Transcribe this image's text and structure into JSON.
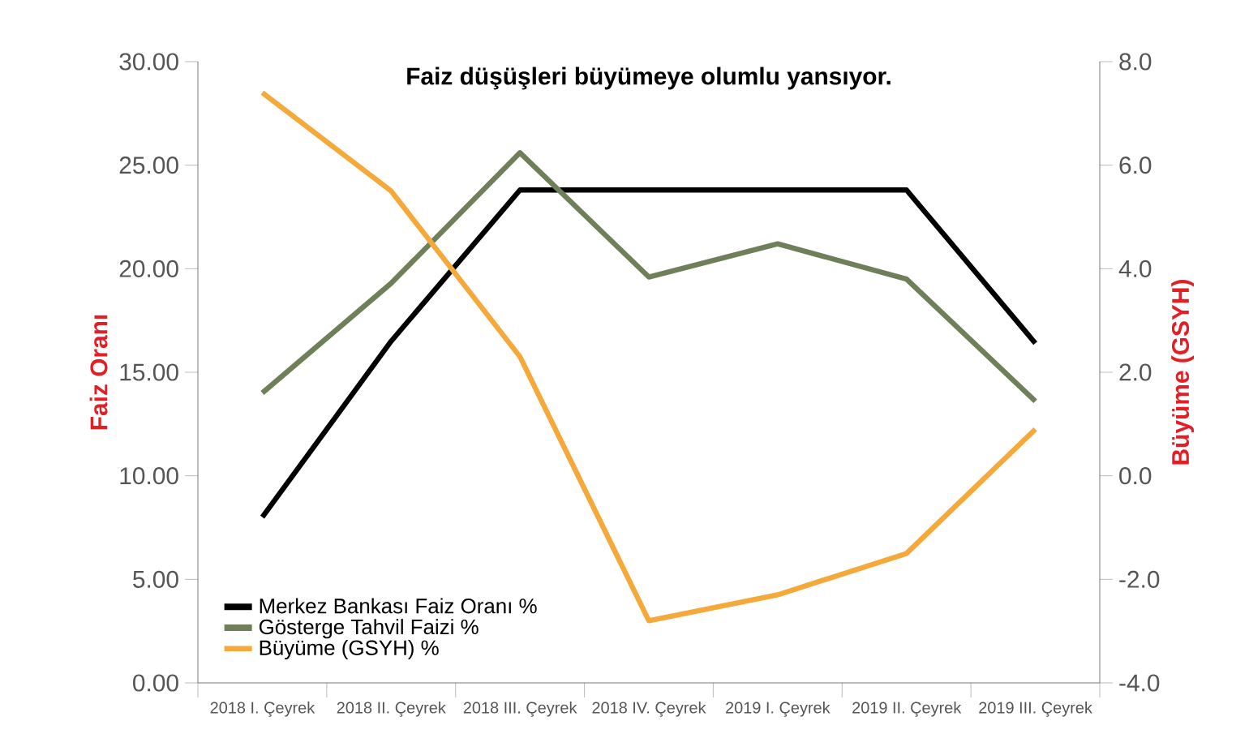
{
  "chart_data": {
    "type": "line",
    "title": "Faiz düşüşleri büyümeye olumlu yansıyor.",
    "ylabel": "Faiz Oranı",
    "y2label": "Büyüme (GSYH)",
    "categories": [
      "2018 I. Çeyrek",
      "2018 II. Çeyrek",
      "2018 III. Çeyrek",
      "2018 IV. Çeyrek",
      "2019 I. Çeyrek",
      "2019 II. Çeyrek",
      "2019 III. Çeyrek"
    ],
    "series": [
      {
        "name": "Merkez Bankası Faiz Oranı %",
        "color": "#000000",
        "values": [
          8.0,
          16.5,
          23.8,
          23.8,
          23.8,
          23.8,
          16.4
        ]
      },
      {
        "name": "Gösterge Tahvil Faizi %",
        "color": "#6e7f5a",
        "values": [
          14.0,
          19.3,
          25.6,
          19.6,
          21.2,
          19.5,
          13.6
        ]
      },
      {
        "name": "Büyüme (GSYH) %",
        "color": "#f4a93a",
        "axis": "y2",
        "values": [
          7.4,
          5.5,
          2.3,
          -2.8,
          -2.3,
          -1.5,
          0.9
        ]
      }
    ],
    "ylim": [
      0,
      30
    ],
    "yticks": [
      {
        "value": 0,
        "label": "0.00"
      },
      {
        "value": 5,
        "label": "5.00"
      },
      {
        "value": 10,
        "label": "10.00"
      },
      {
        "value": 15,
        "label": "15.00"
      },
      {
        "value": 20,
        "label": "20.00"
      },
      {
        "value": 25,
        "label": "25.00"
      },
      {
        "value": 30,
        "label": "30.00"
      }
    ],
    "y2lim": [
      -4,
      8
    ],
    "y2ticks": [
      {
        "value": -4,
        "label": "-4.0"
      },
      {
        "value": -2,
        "label": "-2.0"
      },
      {
        "value": 0,
        "label": "0.0"
      },
      {
        "value": 2,
        "label": "2.0"
      },
      {
        "value": 4,
        "label": "4.0"
      },
      {
        "value": 6,
        "label": "6.0"
      },
      {
        "value": 8,
        "label": "8.0"
      }
    ],
    "grid": false,
    "legend": "bottom left"
  }
}
